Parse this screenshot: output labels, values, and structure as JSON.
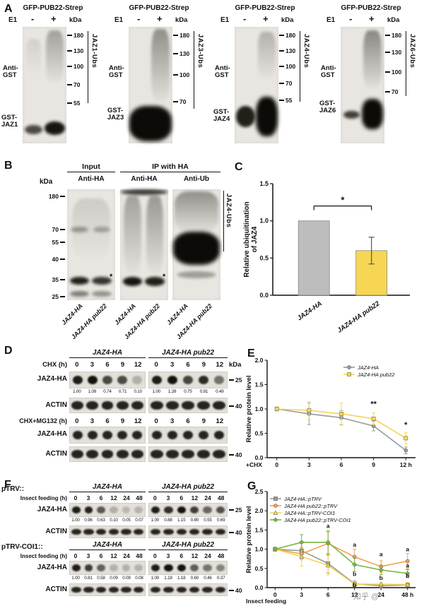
{
  "watermark": "知乎 @",
  "panelA": {
    "label": "A",
    "blots": [
      {
        "title": "GFP-PUB22-Strep",
        "e1": "E1",
        "minus": "-",
        "plus": "+",
        "kda": "kDa",
        "markers": [
          "180",
          "130",
          "100",
          "70",
          "55"
        ],
        "antibody": "Anti-GST",
        "substrate": "GST-JAZ1",
        "ubs": "JAZ1-Ubs"
      },
      {
        "title": "GFP-PUB22-Strep",
        "e1": "E1",
        "minus": "-",
        "plus": "+",
        "kda": "kDa",
        "markers": [
          "180",
          "130",
          "100",
          "70"
        ],
        "antibody": "Anti-GST",
        "substrate": "GST-JAZ3",
        "ubs": "JAZ3-Ubs"
      },
      {
        "title": "GFP-PUB22-Strep",
        "e1": "E1",
        "minus": "-",
        "plus": "+",
        "kda": "kDa",
        "markers": [
          "180",
          "130",
          "100",
          "70",
          "55"
        ],
        "antibody": "Anti-GST",
        "substrate": "GST-JAZ4",
        "ubs": "JAZ4-Ubs"
      },
      {
        "title": "GFP-PUB22-Strep",
        "e1": "E1",
        "minus": "-",
        "plus": "+",
        "kda": "kDa",
        "markers": [
          "180",
          "130",
          "100",
          "70"
        ],
        "antibody": "Anti-GST",
        "substrate": "GST-JAZ6",
        "ubs": "JAZ6-Ubs"
      }
    ]
  },
  "panelB": {
    "label": "B",
    "input_header": "Input",
    "ip_header": "IP with HA",
    "kda": "kDa",
    "markers": [
      "180",
      "70",
      "55",
      "40",
      "35",
      "25"
    ],
    "antibodies": [
      "Anti-HA",
      "Anti-HA",
      "Anti-Ub"
    ],
    "ubs": "JAZ4-Ubs",
    "asterisk": "*",
    "lane1": "JAZ4-HA",
    "lane2": "JAZ4-HA pub22"
  },
  "panelC": {
    "label": "C",
    "chart_data": {
      "type": "bar",
      "categories": [
        "JAZ4-HA",
        "JAZ4-HA pub22"
      ],
      "values": [
        1.0,
        0.6
      ],
      "errors": [
        0,
        0.18
      ],
      "colors": [
        "#bdbdbd",
        "#f6d653"
      ],
      "ylabel_lines": [
        "Relative ubiquitination",
        "of JAZ4"
      ],
      "ylim": [
        0,
        1.5
      ],
      "yticks": [
        0,
        0.5,
        1,
        1.5
      ],
      "significance": "*"
    }
  },
  "panelD": {
    "label": "D",
    "genotype1": "JAZ4-HA",
    "genotype2": "JAZ4-HA pub22",
    "kda": "kDa",
    "row1_treatment": "CHX (h)",
    "row2_treatment": "CHX+MG132 (h)",
    "timepoints": [
      "0",
      "3",
      "6",
      "9",
      "12"
    ],
    "blot_label": "JAZ4-HA",
    "actin_label": "ACTIN",
    "values1": [
      "1.00",
      "1.09",
      "0.74",
      "0.71",
      "0.10"
    ],
    "values2": [
      "1.00",
      "1.28",
      "0.75",
      "0.91",
      "0.49"
    ],
    "marker_25": "25",
    "marker_40": "40"
  },
  "panelE": {
    "label": "E",
    "chart_data": {
      "type": "line",
      "x": [
        0,
        3,
        6,
        9,
        12
      ],
      "xtick_labels": [
        "0",
        "3",
        "6",
        "9",
        "12 h"
      ],
      "xlabel": "+CHX",
      "xlabel_offset": 13,
      "ylabel_lines": [
        "Relative protein level"
      ],
      "ylim": [
        0,
        2
      ],
      "yticks": [
        0,
        0.5,
        1,
        1.5,
        2
      ],
      "legend_pos": "tr",
      "series": [
        {
          "name": "JAZ4-HA",
          "color": "#9a9a9a",
          "shape": "circle",
          "values": [
            1.0,
            0.9,
            0.82,
            0.65,
            0.15
          ],
          "errors": [
            0.04,
            0.22,
            0.15,
            0.1,
            0.07
          ]
        },
        {
          "name": "JAZ4-HA pub22",
          "color": "#f6d653",
          "shape": "square",
          "values": [
            1.0,
            0.97,
            0.9,
            0.8,
            0.4
          ],
          "errors": [
            0.04,
            0.18,
            0.22,
            0.12,
            0.12
          ]
        }
      ],
      "annotations": [
        {
          "xi": 3,
          "y": 1.05,
          "t": "**"
        },
        {
          "xi": 4,
          "y": 0.62,
          "t": "*"
        }
      ]
    }
  },
  "panelF": {
    "label": "F",
    "sections": [
      {
        "construct": "pTRV::",
        "genotype1": "JAZ4-HA",
        "genotype2": "JAZ4-HA pub22",
        "treatment": "Insect feeding (h)",
        "timepoints": [
          "0",
          "3",
          "6",
          "12",
          "24",
          "48"
        ],
        "blot_label": "JAZ4-HA",
        "actin_label": "ACTIN",
        "values1": [
          "1.00",
          "0.96",
          "0.63",
          "0.10",
          "0.05",
          "0.07"
        ],
        "values2": [
          "1.00",
          "0.88",
          "1.15",
          "0.80",
          "0.55",
          "0.69"
        ],
        "marker_25": "25",
        "marker_40": "40"
      },
      {
        "construct": "pTRV-COI1::",
        "genotype1": "JAZ4-HA",
        "genotype2": "JAZ4-HA pub22",
        "treatment": "Insect feeding (h)",
        "timepoints": [
          "0",
          "3",
          "6",
          "12",
          "24",
          "48"
        ],
        "blot_label": "JAZ4-HA",
        "actin_label": "ACTIN",
        "values1": [
          "1.00",
          "0.81",
          "0.58",
          "0.09",
          "0.09",
          "0.08"
        ],
        "values2": [
          "1.00",
          "1.18",
          "1.18",
          "0.60",
          "0.46",
          "0.37"
        ],
        "marker_40": "40"
      }
    ]
  },
  "panelG": {
    "label": "G",
    "chart_data": {
      "type": "line",
      "x": [
        0,
        3,
        6,
        12,
        24,
        48
      ],
      "xtick_labels": [
        "0",
        "3",
        "6",
        "12",
        "24",
        "48 h"
      ],
      "xlabel": "Insect feeding",
      "xlabel_offset": 22,
      "ylabel_lines": [
        "Relative protein level"
      ],
      "ylim": [
        0,
        2.5
      ],
      "yticks": [
        0,
        0.5,
        1,
        1.5,
        2,
        2.5
      ],
      "legend_pos": "tl",
      "series": [
        {
          "name": "JAZ4-HA::pTRV",
          "color": "#9a9a9a",
          "shape": "square",
          "values": [
            1.0,
            0.96,
            0.63,
            0.1,
            0.05,
            0.07
          ],
          "errors": [
            0.05,
            0.2,
            0.25,
            0.08,
            0.05,
            0.05
          ]
        },
        {
          "name": "JAZ4-HA pub22::pTRV",
          "color": "#f2a04e",
          "shape": "circle",
          "values": [
            1.0,
            0.88,
            1.15,
            0.8,
            0.55,
            0.69
          ],
          "errors": [
            0.05,
            0.15,
            0.3,
            0.2,
            0.15,
            0.2
          ]
        },
        {
          "name": "JAZ4-HA::pTRV-COI1",
          "color": "#f6d653",
          "shape": "triangle",
          "values": [
            1.0,
            0.81,
            0.58,
            0.09,
            0.09,
            0.08
          ],
          "errors": [
            0.05,
            0.25,
            0.25,
            0.06,
            0.05,
            0.05
          ]
        },
        {
          "name": "JAZ4-HA pub22::pTRV-COI1",
          "color": "#79b544",
          "shape": "diamond",
          "values": [
            1.0,
            1.18,
            1.18,
            0.6,
            0.46,
            0.37
          ],
          "errors": [
            0.05,
            0.2,
            0.3,
            0.18,
            0.12,
            0.1
          ]
        }
      ],
      "annotations": [
        {
          "xi": 2,
          "y": 1.55,
          "t": "a"
        },
        {
          "xi": 3,
          "y": 1.07,
          "t": "a"
        },
        {
          "xi": 3,
          "y": 0.3,
          "t": "b"
        },
        {
          "xi": 3,
          "y": 0.02,
          "t": "b"
        },
        {
          "xi": 4,
          "y": 0.82,
          "t": "a"
        },
        {
          "xi": 4,
          "y": 0.2,
          "t": "b"
        },
        {
          "xi": 5,
          "y": 0.95,
          "t": "a"
        },
        {
          "xi": 5,
          "y": 0.52,
          "t": "a"
        },
        {
          "xi": 5,
          "y": 0.26,
          "t": "b"
        }
      ]
    }
  }
}
